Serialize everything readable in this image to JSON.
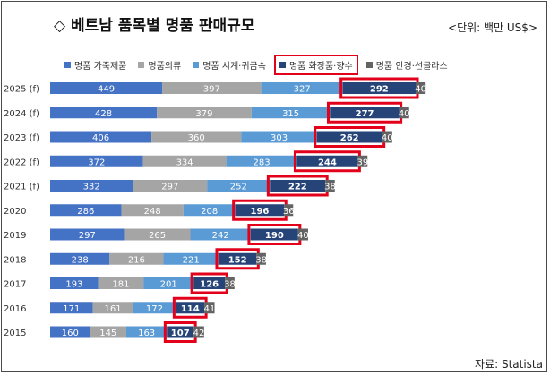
{
  "title": "◇ 베트남 품목별 명품 판매규모",
  "unit": "<단위: 백만 US$>",
  "source": "자료: Statista",
  "colors": {
    "leather": "#4472c4",
    "clothing": "#a5a5a5",
    "watches": "#5b9bd5",
    "cosmetics": "#264478",
    "eyewear": "#636363",
    "highlight": "#e3001b"
  },
  "chart_data": {
    "type": "bar",
    "orientation": "horizontal",
    "stacked": true,
    "categories": [
      "2025 (f)",
      "2024 (f)",
      "2023 (f)",
      "2022 (f)",
      "2021 (f)",
      "2020",
      "2019",
      "2018",
      "2017",
      "2016",
      "2015"
    ],
    "series": [
      {
        "name": "명품 가죽제품",
        "color_key": "leather",
        "values": [
          449,
          428,
          406,
          372,
          332,
          286,
          297,
          238,
          193,
          171,
          160
        ]
      },
      {
        "name": "명품의류",
        "color_key": "clothing",
        "values": [
          397,
          379,
          360,
          334,
          297,
          248,
          265,
          216,
          181,
          161,
          145
        ]
      },
      {
        "name": "명품 시계·귀금속",
        "color_key": "watches",
        "values": [
          327,
          315,
          303,
          283,
          252,
          208,
          242,
          221,
          201,
          172,
          163
        ]
      },
      {
        "name": "명품 화장품·향수",
        "color_key": "cosmetics",
        "values": [
          292,
          277,
          262,
          244,
          222,
          196,
          190,
          152,
          126,
          114,
          107
        ],
        "highlighted": true
      },
      {
        "name": "명품 안경·선글라스",
        "color_key": "eyewear",
        "values": [
          40,
          40,
          40,
          39,
          38,
          36,
          40,
          38,
          38,
          41,
          42
        ]
      }
    ],
    "legend_position": "top",
    "grid": false,
    "xlabel": "",
    "ylabel": ""
  }
}
